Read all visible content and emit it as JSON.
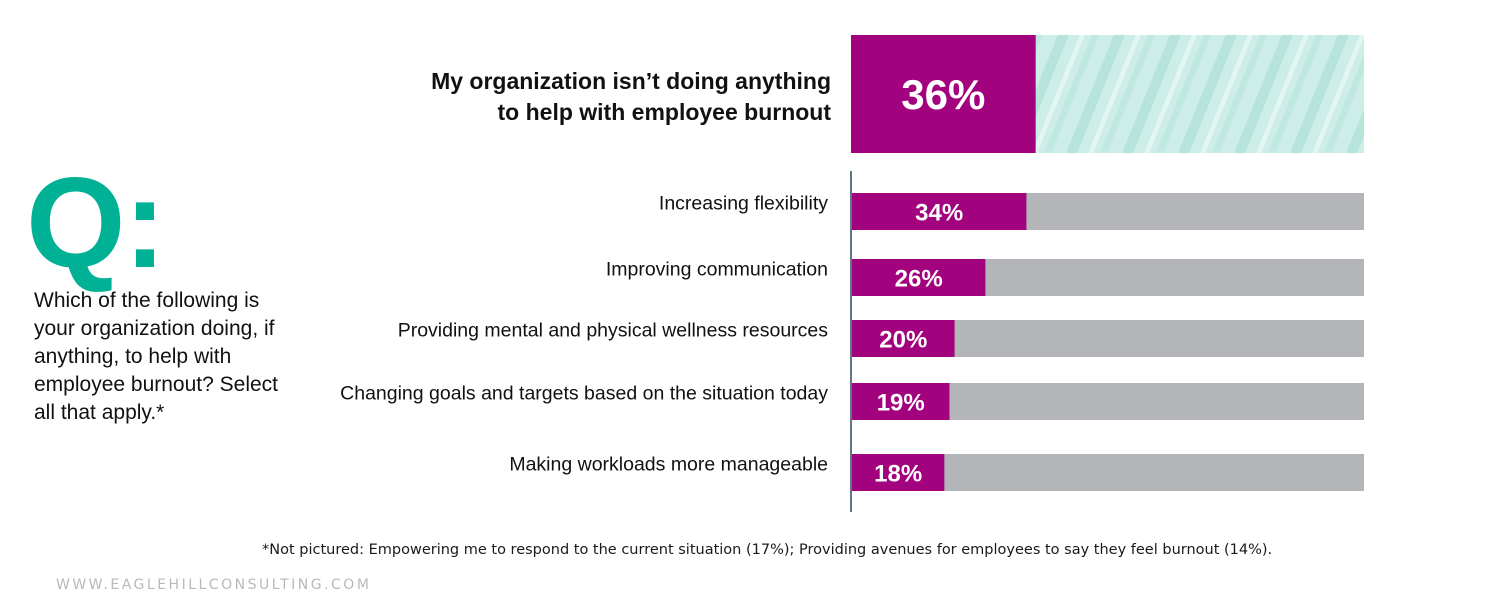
{
  "question": {
    "mark": "Q:",
    "text": "Which of the following is your organization doing, if anything, to help with employee burnout? Select all that apply.*"
  },
  "colors": {
    "accent": "#a3027f",
    "teal": "#00b195",
    "bar_track": "#b3b5b8",
    "highlight_track": "#c9ece5"
  },
  "chart_data": {
    "type": "bar",
    "orientation": "horizontal",
    "value_unit": "%",
    "xlim": [
      0,
      100
    ],
    "highlight": {
      "category": "My organization isn’t doing anything to help with employee burnout",
      "category_lines": [
        "My organization isn’t doing anything",
        "to help with employee burnout"
      ],
      "value": 36,
      "label": "36%"
    },
    "categories": [
      "Increasing flexibility",
      "Improving communication",
      "Providing mental and physical wellness resources",
      "Changing goals and targets based on the situation today",
      "Making workloads more manageable"
    ],
    "values": [
      34,
      26,
      20,
      19,
      18
    ],
    "labels": [
      "34%",
      "26%",
      "20%",
      "19%",
      "18%"
    ]
  },
  "footnote": "*Not pictured: Empowering me to respond to the current situation (17%); Providing avenues for employees to say they feel burnout (14%).",
  "website": "WWW.EAGLEHILLCONSULTING.COM"
}
